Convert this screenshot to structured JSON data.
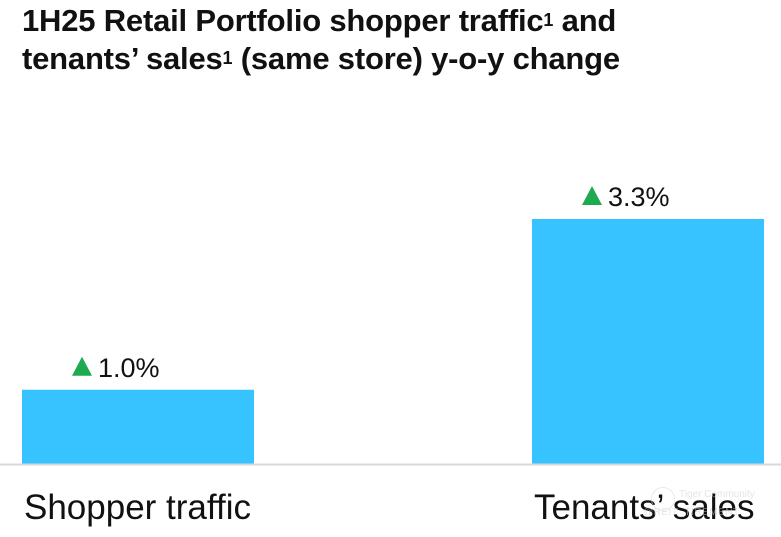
{
  "title": {
    "line1_text": "1H25 Retail Portfolio shopper traffic",
    "line1_sup": "1",
    "line1_end": " and",
    "line2_text": "tenants’ sales",
    "line2_sup": "1",
    "line2_end": " (same store) y-o-y change"
  },
  "chart_data": {
    "type": "bar",
    "categories": [
      "Shopper traffic",
      "Tenants’ sales"
    ],
    "values": [
      1.0,
      3.3
    ],
    "value_labels": [
      "1.0%",
      "3.3%"
    ],
    "ylim": [
      0,
      3.3
    ],
    "xlabel": "",
    "ylabel": "",
    "grid": false,
    "legend": "none",
    "colors": {
      "bar": "#36C3FF",
      "up_arrow": "#1FAA4F",
      "axis": "#d9d9d9",
      "text": "#111111"
    },
    "markers": [
      "up-triangle-icon",
      "up-triangle-icon"
    ]
  },
  "watermark": {
    "line1": "Tiger Community",
    "line2": "@REIT_TIREMENT"
  }
}
